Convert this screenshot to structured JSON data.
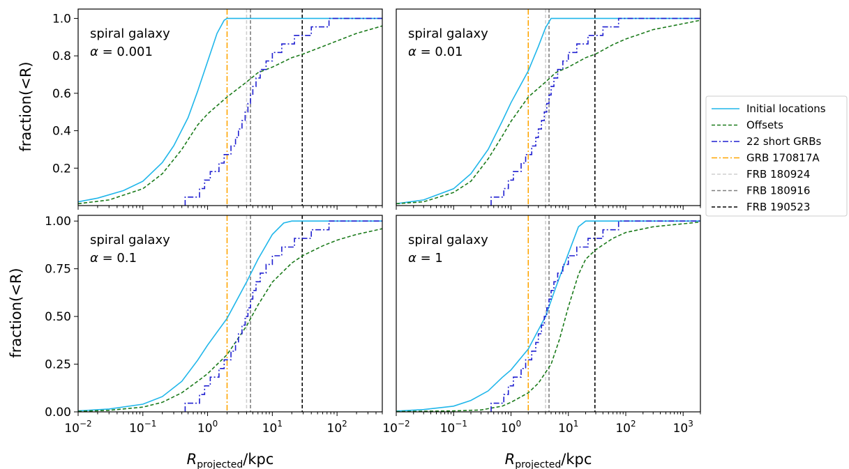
{
  "figure": {
    "ylabel": "fraction(<R)",
    "xlabel": {
      "main": "R",
      "sub": "projected",
      "unit": "/kpc"
    },
    "legend_placement": "right",
    "legend": [
      {
        "label": "Initial locations",
        "color": "#1fb6ea",
        "style": "solid"
      },
      {
        "label": "Offsets",
        "color": "#1a7a1a",
        "style": "dashed"
      },
      {
        "label": "22 short GRBs",
        "color": "#1f1fd0",
        "style": "dashdot"
      },
      {
        "label": "GRB 170817A",
        "color": "#ffa500",
        "style": "dashdot"
      },
      {
        "label": "FRB 180924",
        "color": "#cfcfcf",
        "style": "dashed"
      },
      {
        "label": "FRB 180916",
        "color": "#7f7f7f",
        "style": "dashed"
      },
      {
        "label": "FRB 190523",
        "color": "#000000",
        "style": "dashed"
      }
    ]
  },
  "chart_data": [
    {
      "type": "line",
      "annotation": "spiral galaxy",
      "alpha_text": "= 0.001",
      "x_scale": "log",
      "xlim": [
        0.01,
        500
      ],
      "ylim": [
        0,
        1.05
      ],
      "yticks": [
        "0.2",
        "0.4",
        "0.6",
        "0.8",
        "1.0"
      ],
      "ytick_values": [
        0.2,
        0.4,
        0.6,
        0.8,
        1.0
      ],
      "show_xtick_labels": false,
      "series": [
        {
          "name": "Initial locations",
          "x": [
            0.01,
            0.02,
            0.05,
            0.1,
            0.2,
            0.3,
            0.5,
            0.7,
            1.0,
            1.4,
            1.8,
            2.0,
            500
          ],
          "y": [
            0.02,
            0.04,
            0.08,
            0.13,
            0.23,
            0.32,
            0.47,
            0.61,
            0.77,
            0.92,
            0.99,
            1.0,
            1.0
          ]
        },
        {
          "name": "Offsets",
          "x": [
            0.01,
            0.03,
            0.1,
            0.2,
            0.4,
            0.7,
            1.0,
            2.0,
            4.0,
            6.0,
            10,
            20,
            30,
            60,
            100,
            200,
            500
          ],
          "y": [
            0.01,
            0.03,
            0.09,
            0.17,
            0.3,
            0.43,
            0.49,
            0.58,
            0.66,
            0.71,
            0.74,
            0.79,
            0.81,
            0.85,
            0.88,
            0.92,
            0.96
          ]
        }
      ],
      "grb_x": [
        0.45,
        0.75,
        0.9,
        1.1,
        1.5,
        1.8,
        2.3,
        2.7,
        3.0,
        3.4,
        3.8,
        4.2,
        4.6,
        5.0,
        5.6,
        6.5,
        8.0,
        10.0,
        14.0,
        22.0,
        40.0,
        75.0
      ]
    },
    {
      "type": "line",
      "annotation": "spiral galaxy",
      "alpha_text": "= 0.01",
      "x_scale": "log",
      "xlim": [
        0.01,
        2000
      ],
      "ylim": [
        0,
        1.05
      ],
      "yticks": [],
      "ytick_values": [],
      "show_xtick_labels": false,
      "series": [
        {
          "name": "Initial locations",
          "x": [
            0.01,
            0.03,
            0.1,
            0.2,
            0.4,
            0.7,
            1.0,
            2.0,
            3.0,
            4.0,
            5.0,
            2000
          ],
          "y": [
            0.01,
            0.03,
            0.09,
            0.17,
            0.3,
            0.45,
            0.55,
            0.72,
            0.85,
            0.95,
            1.0,
            1.0
          ]
        },
        {
          "name": "Offsets",
          "x": [
            0.01,
            0.03,
            0.1,
            0.2,
            0.4,
            0.7,
            1.0,
            2.0,
            4.0,
            6.0,
            10,
            20,
            30,
            60,
            100,
            300,
            2000
          ],
          "y": [
            0.01,
            0.02,
            0.07,
            0.13,
            0.25,
            0.37,
            0.45,
            0.58,
            0.66,
            0.71,
            0.74,
            0.79,
            0.81,
            0.86,
            0.89,
            0.94,
            0.99
          ]
        }
      ],
      "grb_x": [
        0.45,
        0.75,
        0.9,
        1.1,
        1.5,
        1.8,
        2.3,
        2.7,
        3.0,
        3.4,
        3.8,
        4.2,
        4.6,
        5.0,
        5.6,
        6.5,
        8.0,
        10.0,
        14.0,
        22.0,
        40.0,
        75.0
      ]
    },
    {
      "type": "line",
      "annotation": "spiral galaxy",
      "alpha_text": "= 0.1",
      "x_scale": "log",
      "xlim": [
        0.01,
        500
      ],
      "ylim": [
        0,
        1.03
      ],
      "yticks": [
        "0.00",
        "0.25",
        "0.50",
        "0.75",
        "1.00"
      ],
      "ytick_values": [
        0,
        0.25,
        0.5,
        0.75,
        1.0
      ],
      "show_xtick_labels": true,
      "xticks": [
        {
          "base": "10",
          "exp": "−2",
          "value": 0.01
        },
        {
          "base": "10",
          "exp": "−1",
          "value": 0.1
        },
        {
          "base": "10",
          "exp": "0",
          "value": 1
        },
        {
          "base": "10",
          "exp": "1",
          "value": 10
        },
        {
          "base": "10",
          "exp": "2",
          "value": 100
        }
      ],
      "series": [
        {
          "name": "Initial locations",
          "x": [
            0.01,
            0.03,
            0.1,
            0.2,
            0.4,
            0.7,
            1.0,
            2.0,
            4.0,
            6.0,
            10,
            15,
            20,
            500
          ],
          "y": [
            0.005,
            0.015,
            0.04,
            0.08,
            0.16,
            0.27,
            0.35,
            0.49,
            0.68,
            0.8,
            0.93,
            0.99,
            1.0,
            1.0
          ]
        },
        {
          "name": "Offsets",
          "x": [
            0.01,
            0.03,
            0.1,
            0.2,
            0.4,
            0.7,
            1.0,
            2.0,
            4.0,
            6.0,
            10,
            20,
            30,
            60,
            100,
            200,
            500
          ],
          "y": [
            0.003,
            0.008,
            0.025,
            0.05,
            0.1,
            0.16,
            0.2,
            0.3,
            0.45,
            0.56,
            0.68,
            0.78,
            0.82,
            0.87,
            0.9,
            0.93,
            0.96
          ]
        }
      ],
      "grb_x": [
        0.45,
        0.75,
        0.9,
        1.1,
        1.5,
        1.8,
        2.3,
        2.7,
        3.0,
        3.4,
        3.8,
        4.2,
        4.6,
        5.0,
        5.6,
        6.5,
        8.0,
        10.0,
        14.0,
        22.0,
        40.0,
        75.0
      ]
    },
    {
      "type": "line",
      "annotation": "spiral galaxy",
      "alpha_text": "= 1",
      "x_scale": "log",
      "xlim": [
        0.01,
        2000
      ],
      "ylim": [
        0,
        1.03
      ],
      "yticks": [],
      "ytick_values": [],
      "show_xtick_labels": true,
      "xticks": [
        {
          "base": "10",
          "exp": "−2",
          "value": 0.01
        },
        {
          "base": "10",
          "exp": "−1",
          "value": 0.1
        },
        {
          "base": "10",
          "exp": "0",
          "value": 1
        },
        {
          "base": "10",
          "exp": "1",
          "value": 10
        },
        {
          "base": "10",
          "exp": "2",
          "value": 100
        },
        {
          "base": "10",
          "exp": "3",
          "value": 1000
        }
      ],
      "series": [
        {
          "name": "Initial locations",
          "x": [
            0.01,
            0.03,
            0.1,
            0.2,
            0.4,
            0.7,
            1.0,
            2.0,
            4.0,
            6.0,
            10,
            15,
            20,
            2000
          ],
          "y": [
            0.004,
            0.012,
            0.03,
            0.06,
            0.11,
            0.18,
            0.22,
            0.33,
            0.5,
            0.65,
            0.83,
            0.97,
            1.0,
            1.0
          ]
        },
        {
          "name": "Offsets",
          "x": [
            0.01,
            0.1,
            0.3,
            0.7,
            1.0,
            2.0,
            3.0,
            5.0,
            7.0,
            10,
            15,
            20,
            30,
            60,
            100,
            300,
            2000
          ],
          "y": [
            0.002,
            0.005,
            0.01,
            0.03,
            0.05,
            0.1,
            0.15,
            0.25,
            0.38,
            0.55,
            0.72,
            0.8,
            0.85,
            0.91,
            0.94,
            0.97,
            0.995
          ]
        }
      ],
      "grb_x": [
        0.45,
        0.75,
        0.9,
        1.1,
        1.5,
        1.8,
        2.3,
        2.7,
        3.0,
        3.4,
        3.8,
        4.2,
        4.6,
        5.0,
        5.6,
        6.5,
        8.0,
        10.0,
        14.0,
        22.0,
        40.0,
        75.0
      ]
    }
  ],
  "vertical_lines": [
    {
      "name": "GRB 170817A",
      "x": 2.0
    },
    {
      "name": "FRB 180924",
      "x": 4.0
    },
    {
      "name": "FRB 180916",
      "x": 4.6
    },
    {
      "name": "FRB 190523",
      "x": 29
    }
  ]
}
